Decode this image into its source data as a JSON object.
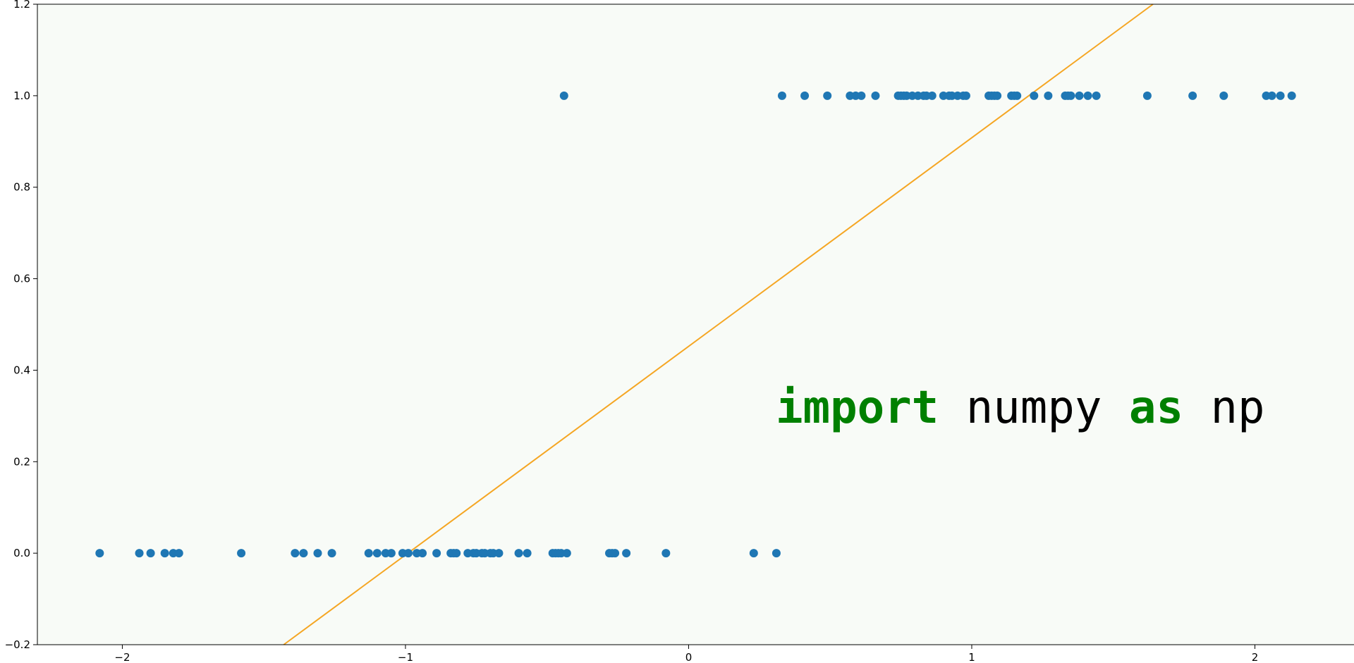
{
  "chart_data": {
    "type": "scatter",
    "title": "",
    "xlabel": "",
    "ylabel": "",
    "xlim": [
      -2.3,
      2.35
    ],
    "ylim": [
      -0.2,
      1.2
    ],
    "grid": false,
    "x_ticks": [
      -2,
      -1,
      0,
      1,
      2
    ],
    "x_tick_labels": [
      "−2",
      "−1",
      "0",
      "1",
      "2"
    ],
    "y_ticks": [
      -0.2,
      0.0,
      0.2,
      0.4,
      0.6,
      0.8,
      1.0,
      1.2
    ],
    "y_tick_labels": [
      "−0.2",
      "0.0",
      "0.2",
      "0.4",
      "0.6",
      "0.8",
      "1.0",
      "1.2"
    ],
    "colors": {
      "points": "#1f77b4",
      "line": "#f5a623",
      "plot_background": "#f8fbf7",
      "keyword": "#008000",
      "code": "#000000"
    },
    "series": [
      {
        "kind": "scatter",
        "x": [
          -2.08,
          -1.94,
          -1.9,
          -1.85,
          -1.82,
          -1.8,
          -1.58,
          -1.39,
          -1.36,
          -1.31,
          -1.26,
          -1.13,
          -1.1,
          -1.07,
          -1.05,
          -1.01,
          -0.99,
          -0.96,
          -0.94,
          -0.89,
          -0.84,
          -0.83,
          -0.82,
          -0.78,
          -0.76,
          -0.75,
          -0.73,
          -0.72,
          -0.7,
          -0.69,
          -0.67,
          -0.6,
          -0.57,
          -0.48,
          -0.47,
          -0.46,
          -0.45,
          -0.43,
          -0.28,
          -0.27,
          -0.26,
          -0.22,
          -0.08,
          0.23,
          0.31
        ],
        "y": [
          0,
          0,
          0,
          0,
          0,
          0,
          0,
          0,
          0,
          0,
          0,
          0,
          0,
          0,
          0,
          0,
          0,
          0,
          0,
          0,
          0,
          0,
          0,
          0,
          0,
          0,
          0,
          0,
          0,
          0,
          0,
          0,
          0,
          0,
          0,
          0,
          0,
          0,
          0,
          0,
          0,
          0,
          0,
          0,
          0
        ]
      },
      {
        "kind": "scatter",
        "x": [
          -0.44,
          0.33,
          0.41,
          0.49,
          0.57,
          0.59,
          0.61,
          0.66,
          0.74,
          0.75,
          0.76,
          0.77,
          0.79,
          0.81,
          0.83,
          0.84,
          0.86,
          0.9,
          0.92,
          0.93,
          0.95,
          0.97,
          0.98,
          1.06,
          1.07,
          1.08,
          1.09,
          1.14,
          1.15,
          1.16,
          1.22,
          1.27,
          1.33,
          1.34,
          1.35,
          1.38,
          1.41,
          1.44,
          1.62,
          1.78,
          1.89,
          2.04,
          2.06,
          2.09,
          2.13
        ],
        "y": [
          1,
          1,
          1,
          1,
          1,
          1,
          1,
          1,
          1,
          1,
          1,
          1,
          1,
          1,
          1,
          1,
          1,
          1,
          1,
          1,
          1,
          1,
          1,
          1,
          1,
          1,
          1,
          1,
          1,
          1,
          1,
          1,
          1,
          1,
          1,
          1,
          1,
          1,
          1,
          1,
          1,
          1,
          1,
          1,
          1
        ]
      },
      {
        "kind": "line",
        "x": [
          -1.43,
          1.64
        ],
        "y": [
          -0.2,
          1.2
        ]
      }
    ],
    "annotation": [
      {
        "text": "import",
        "role": "keyword"
      },
      {
        "text": " numpy ",
        "role": "plain"
      },
      {
        "text": "as",
        "role": "keyword"
      },
      {
        "text": " np",
        "role": "plain"
      }
    ]
  }
}
